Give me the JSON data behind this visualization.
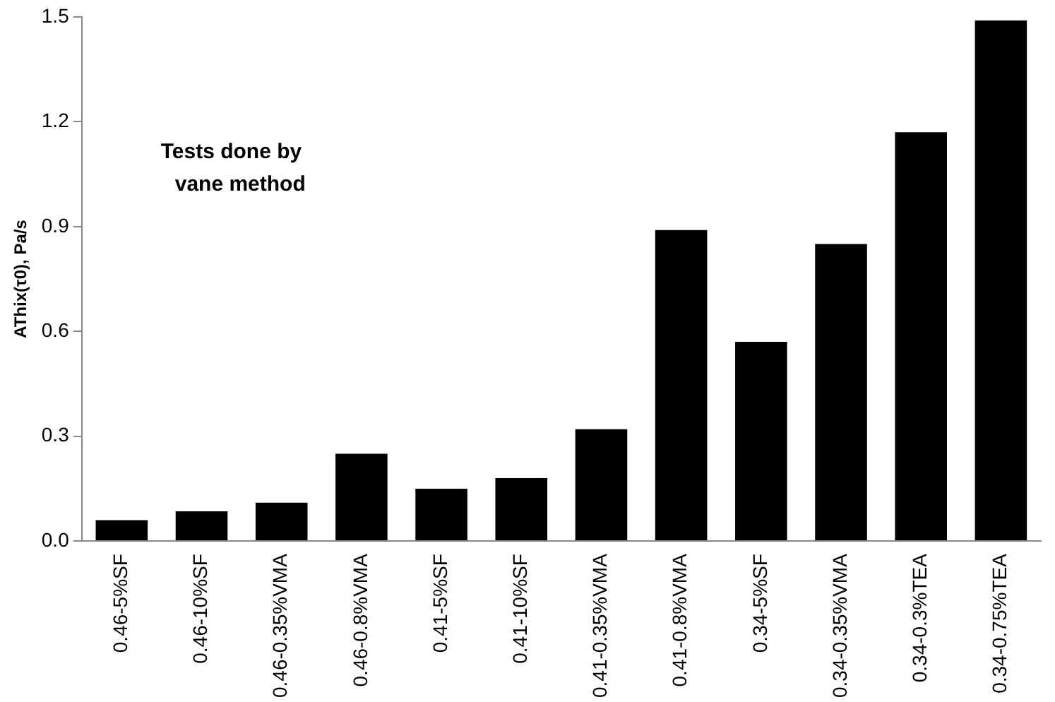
{
  "chart_data": {
    "type": "bar",
    "ylabel": "AThix(τ0), Pa/s",
    "annotations": [
      "Tests done by vane method"
    ],
    "categories": [
      "0.46-5%SF",
      "0.46-10%SF",
      "0.46-0.35%VMA",
      "0.46-0.8%VMA",
      "0.41-5%SF",
      "0.41-10%SF",
      "0.41-0.35%VMA",
      "0.41-0.8%VMA",
      "0.34-5%SF",
      "0.34-0.35%VMA",
      "0.34-0.3%TEA",
      "0.34-0.75%TEA"
    ],
    "values": [
      0.06,
      0.085,
      0.11,
      0.25,
      0.15,
      0.18,
      0.32,
      0.89,
      0.57,
      0.85,
      1.17,
      1.49
    ],
    "color": "#000000",
    "ylim": [
      0,
      1.5
    ],
    "yticks": [
      {
        "value": 0,
        "label": "0.0"
      },
      0.3,
      0.6,
      0.9,
      1.2,
      1.5
    ],
    "grid": false,
    "legend": false
  }
}
